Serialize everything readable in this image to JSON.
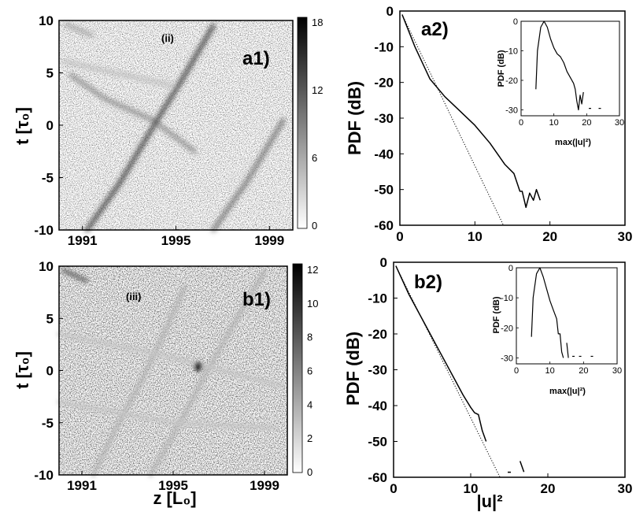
{
  "chart_data": [
    {
      "id": "a1",
      "type": "heatmap",
      "panel_label": "a1)",
      "annotation": "(ii)",
      "xlabel": "",
      "ylabel": "t [τ₀]",
      "xticks": [
        "1991",
        "1995",
        "1999"
      ],
      "yticks": [
        "10",
        "5",
        "0",
        "-5",
        "-10"
      ],
      "xlim": [
        1990,
        2000
      ],
      "ylim": [
        -10,
        10
      ],
      "colorbar": {
        "ticks": [
          "18",
          "12",
          "6",
          "0"
        ],
        "range": [
          0,
          18
        ]
      },
      "ridges": [
        {
          "points": [
            [
              1990.5,
              4.8
            ],
            [
              1992,
              2.5
            ],
            [
              1994,
              0.5
            ],
            [
              1995.8,
              -2.5
            ]
          ],
          "peak": 9
        },
        {
          "points": [
            [
              1991.2,
              -10
            ],
            [
              1992.6,
              -5.5
            ],
            [
              1994.2,
              0.5
            ],
            [
              1995.3,
              4.5
            ],
            [
              1996.6,
              9.5
            ]
          ],
          "peak": 15
        },
        {
          "points": [
            [
              1996.6,
              -10
            ],
            [
              1998,
              -5.5
            ],
            [
              1999.6,
              0.5
            ]
          ],
          "peak": 11
        },
        {
          "points": [
            [
              1990.3,
              9.6
            ],
            [
              1991.4,
              8.6
            ]
          ],
          "peak": 7
        },
        {
          "points": [
            [
              1990.2,
              6.1
            ],
            [
              1994.8,
              3.8
            ]
          ],
          "peak": 5
        }
      ]
    },
    {
      "id": "a2",
      "type": "line",
      "panel_label": "a2)",
      "xlabel": "",
      "ylabel": "PDF (dB)",
      "xticks": [
        "0",
        "10",
        "20",
        "30"
      ],
      "yticks": [
        "0",
        "-10",
        "-20",
        "-30",
        "-40",
        "-50",
        "-60"
      ],
      "xlim": [
        0,
        30
      ],
      "ylim": [
        -60,
        0
      ],
      "series": [
        {
          "style": "solid",
          "x": [
            0.3,
            2,
            4,
            6,
            8,
            10,
            12,
            14,
            15.2,
            16,
            16.3,
            16.8,
            17.3,
            17.8,
            18.2,
            18.7
          ],
          "y": [
            -1,
            -10,
            -19,
            -24,
            -28,
            -32,
            -37,
            -43,
            -45.5,
            -50.5,
            -50.5,
            -55,
            -51,
            -53,
            -50,
            -53
          ]
        },
        {
          "style": "dotted",
          "x": [
            0.3,
            13.8
          ],
          "y": [
            -1,
            -60
          ]
        }
      ],
      "inset": {
        "xlabel": "max(|u|²)",
        "ylabel": "PDF (dB)",
        "xticks": [
          "0",
          "10",
          "20",
          "30"
        ],
        "yticks": [
          "0",
          "-10",
          "-20",
          "-30"
        ],
        "xlim": [
          0,
          30
        ],
        "ylim": [
          -32,
          0
        ],
        "series": [
          {
            "style": "solid",
            "x": [
              4.5,
              5,
              6,
              7,
              8,
              9,
              10,
              11,
              12,
              13,
              14,
              15,
              16,
              16.5,
              17,
              17.5,
              18,
              18.5,
              19
            ],
            "y": [
              -23,
              -10,
              -2,
              0,
              -2,
              -6,
              -9,
              -11,
              -12,
              -14,
              -17,
              -19,
              -21,
              -23,
              -27,
              -30,
              -25,
              -28,
              -24
            ]
          },
          {
            "style": "points",
            "x": [
              21,
              24
            ],
            "y": [
              -29.5,
              -29.5
            ]
          }
        ]
      }
    },
    {
      "id": "b1",
      "type": "heatmap",
      "panel_label": "b1)",
      "annotation": "(iii)",
      "xlabel": "z [L₀]",
      "ylabel": "t [τ₀]",
      "xticks": [
        "1991",
        "1995",
        "1999"
      ],
      "yticks": [
        "10",
        "5",
        "0",
        "-5",
        "-10"
      ],
      "xlim": [
        1990,
        2000
      ],
      "ylim": [
        -10,
        10
      ],
      "colorbar": {
        "ticks": [
          "12",
          "10",
          "8",
          "6",
          "4",
          "2",
          "0"
        ],
        "range": [
          0,
          12
        ]
      },
      "ridges": [
        {
          "points": [
            [
              1990.2,
              9.6
            ],
            [
              1991.2,
              8.6
            ]
          ],
          "peak": 8
        },
        {
          "points": [
            [
              1991.5,
              -10
            ],
            [
              1992.5,
              -5.5
            ],
            [
              1993.6,
              -1
            ],
            [
              1994.6,
              3.5
            ],
            [
              1995.5,
              8
            ]
          ],
          "peak": 4
        },
        {
          "points": [
            [
              1994,
              -10
            ],
            [
              1995.3,
              -5
            ],
            [
              1996.5,
              0
            ],
            [
              1997.8,
              5
            ],
            [
              1999,
              9.5
            ]
          ],
          "peak": 4
        },
        {
          "points": [
            [
              1990,
              3.5
            ],
            [
              1994.5,
              1.5
            ],
            [
              1999.8,
              -1.5
            ]
          ],
          "peak": 3
        },
        {
          "points": [
            [
              1990,
              -3
            ],
            [
              1995,
              -5
            ],
            [
              1999.5,
              -5.5
            ]
          ],
          "peak": 3
        }
      ],
      "hotspot": {
        "z": 1996.1,
        "t": 0.4,
        "peak": 12
      }
    },
    {
      "id": "b2",
      "type": "line",
      "panel_label": "b2)",
      "xlabel": "|u|²",
      "ylabel": "PDF (dB)",
      "xticks": [
        "0",
        "10",
        "20",
        "30"
      ],
      "yticks": [
        "0",
        "-10",
        "-20",
        "-30",
        "-40",
        "-50",
        "-60"
      ],
      "xlim": [
        0,
        30
      ],
      "ylim": [
        -60,
        0
      ],
      "series": [
        {
          "style": "solid",
          "x": [
            0.3,
            2,
            4,
            6,
            8,
            9,
            10,
            10.5,
            11,
            11.5,
            12
          ],
          "y": [
            -1,
            -9,
            -17,
            -25,
            -33,
            -37,
            -40.5,
            -42,
            -42.5,
            -47,
            -50
          ]
        },
        {
          "style": "dotted",
          "x": [
            0.3,
            13.8
          ],
          "y": [
            -1,
            -60
          ]
        },
        {
          "style": "solid",
          "x": [
            16.4,
            16.9
          ],
          "y": [
            -55.5,
            -58.5
          ]
        },
        {
          "style": "solid",
          "x": [
            14.8,
            15.2
          ],
          "y": [
            -58.6,
            -58.6
          ]
        }
      ],
      "inset": {
        "xlabel": "max(|u|²)",
        "ylabel": "PDF (dB)",
        "xticks": [
          "0",
          "10",
          "20",
          "30"
        ],
        "yticks": [
          "0",
          "-10",
          "-20",
          "-30"
        ],
        "xlim": [
          0,
          30
        ],
        "ylim": [
          -32,
          0
        ],
        "series": [
          {
            "style": "solid",
            "x": [
              4.5,
              5,
              6,
              7,
              8,
              9,
              10,
              11,
              12,
              12.5,
              13,
              13.5,
              14
            ],
            "y": [
              -23,
              -10,
              -2,
              0,
              -3,
              -7,
              -11,
              -14,
              -17,
              -22,
              -22,
              -28,
              -30
            ]
          },
          {
            "style": "solid",
            "x": [
              15,
              15.5
            ],
            "y": [
              -25,
              -30
            ]
          },
          {
            "style": "points",
            "x": [
              17,
              19,
              22.5
            ],
            "y": [
              -29.5,
              -29.5,
              -29.5
            ]
          }
        ]
      }
    }
  ]
}
